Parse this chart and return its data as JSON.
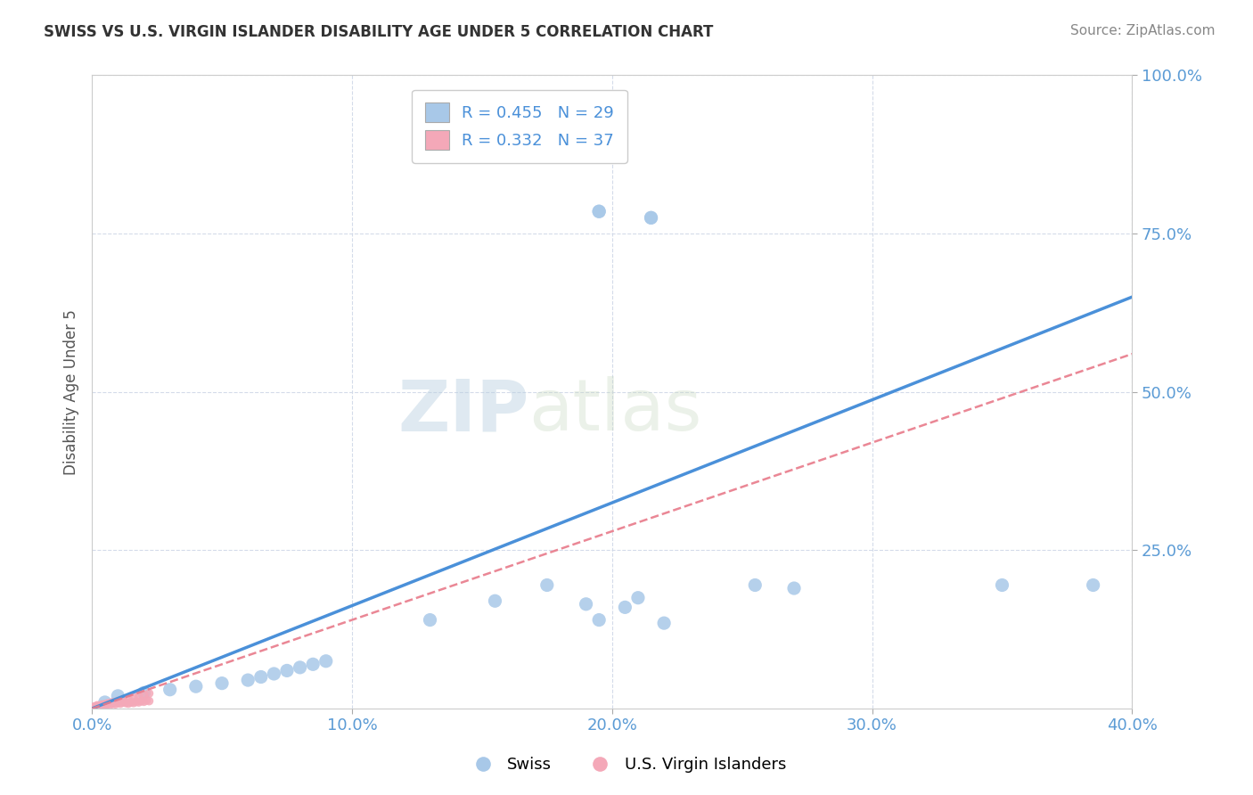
{
  "title": "SWISS VS U.S. VIRGIN ISLANDER DISABILITY AGE UNDER 5 CORRELATION CHART",
  "source": "Source: ZipAtlas.com",
  "ylabel": "Disability Age Under 5",
  "xlim": [
    0.0,
    0.4
  ],
  "ylim": [
    0.0,
    1.0
  ],
  "xtick_labels": [
    "0.0%",
    "10.0%",
    "20.0%",
    "30.0%",
    "40.0%"
  ],
  "xtick_values": [
    0.0,
    0.1,
    0.2,
    0.3,
    0.4
  ],
  "ytick_labels": [
    "25.0%",
    "50.0%",
    "75.0%",
    "100.0%"
  ],
  "ytick_values": [
    0.25,
    0.5,
    0.75,
    1.0
  ],
  "background_color": "#ffffff",
  "watermark_zip": "ZIP",
  "watermark_atlas": "atlas",
  "swiss_R": 0.455,
  "swiss_N": 29,
  "vi_R": 0.332,
  "vi_N": 37,
  "swiss_color": "#a8c8e8",
  "vi_color": "#f4a8b8",
  "swiss_line_color": "#4a90d9",
  "vi_line_color": "#e87a8a",
  "grid_color": "#d0d8e8",
  "swiss_x": [
    0.005,
    0.01,
    0.02,
    0.03,
    0.04,
    0.05,
    0.06,
    0.065,
    0.07,
    0.075,
    0.08,
    0.085,
    0.09,
    0.13,
    0.155,
    0.175,
    0.19,
    0.195,
    0.205,
    0.21,
    0.22,
    0.255,
    0.27,
    0.35,
    0.385,
    0.195,
    0.215,
    0.195,
    0.215
  ],
  "swiss_y": [
    0.01,
    0.02,
    0.025,
    0.03,
    0.035,
    0.04,
    0.045,
    0.05,
    0.055,
    0.06,
    0.065,
    0.07,
    0.075,
    0.14,
    0.17,
    0.195,
    0.165,
    0.14,
    0.16,
    0.175,
    0.135,
    0.195,
    0.19,
    0.195,
    0.195,
    0.785,
    0.775,
    0.785,
    0.775
  ],
  "vi_x": [
    0.001,
    0.002,
    0.003,
    0.004,
    0.005,
    0.006,
    0.007,
    0.008,
    0.009,
    0.01,
    0.011,
    0.012,
    0.013,
    0.014,
    0.015,
    0.016,
    0.017,
    0.018,
    0.019,
    0.02,
    0.021,
    0.022,
    0.002,
    0.004,
    0.006,
    0.008,
    0.01,
    0.012,
    0.014,
    0.016,
    0.018,
    0.02,
    0.022,
    0.001,
    0.003,
    0.005,
    0.007
  ],
  "vi_y": [
    0.003,
    0.005,
    0.004,
    0.006,
    0.005,
    0.007,
    0.006,
    0.008,
    0.007,
    0.009,
    0.008,
    0.01,
    0.009,
    0.008,
    0.01,
    0.009,
    0.011,
    0.01,
    0.012,
    0.011,
    0.013,
    0.012,
    0.004,
    0.006,
    0.008,
    0.01,
    0.012,
    0.014,
    0.016,
    0.018,
    0.02,
    0.022,
    0.024,
    0.003,
    0.005,
    0.007,
    0.009
  ],
  "legend_swiss_label": "Swiss",
  "legend_vi_label": "U.S. Virgin Islanders",
  "title_color": "#333333",
  "axis_label_color": "#555555",
  "tick_color": "#5b9bd5",
  "stat_color": "#4a90d9",
  "swiss_line_x0": 0.0,
  "swiss_line_x1": 0.4,
  "swiss_line_y0": 0.0,
  "swiss_line_y1": 0.65,
  "vi_line_x0": 0.0,
  "vi_line_x1": 0.4,
  "vi_line_y0": 0.0,
  "vi_line_y1": 0.56
}
